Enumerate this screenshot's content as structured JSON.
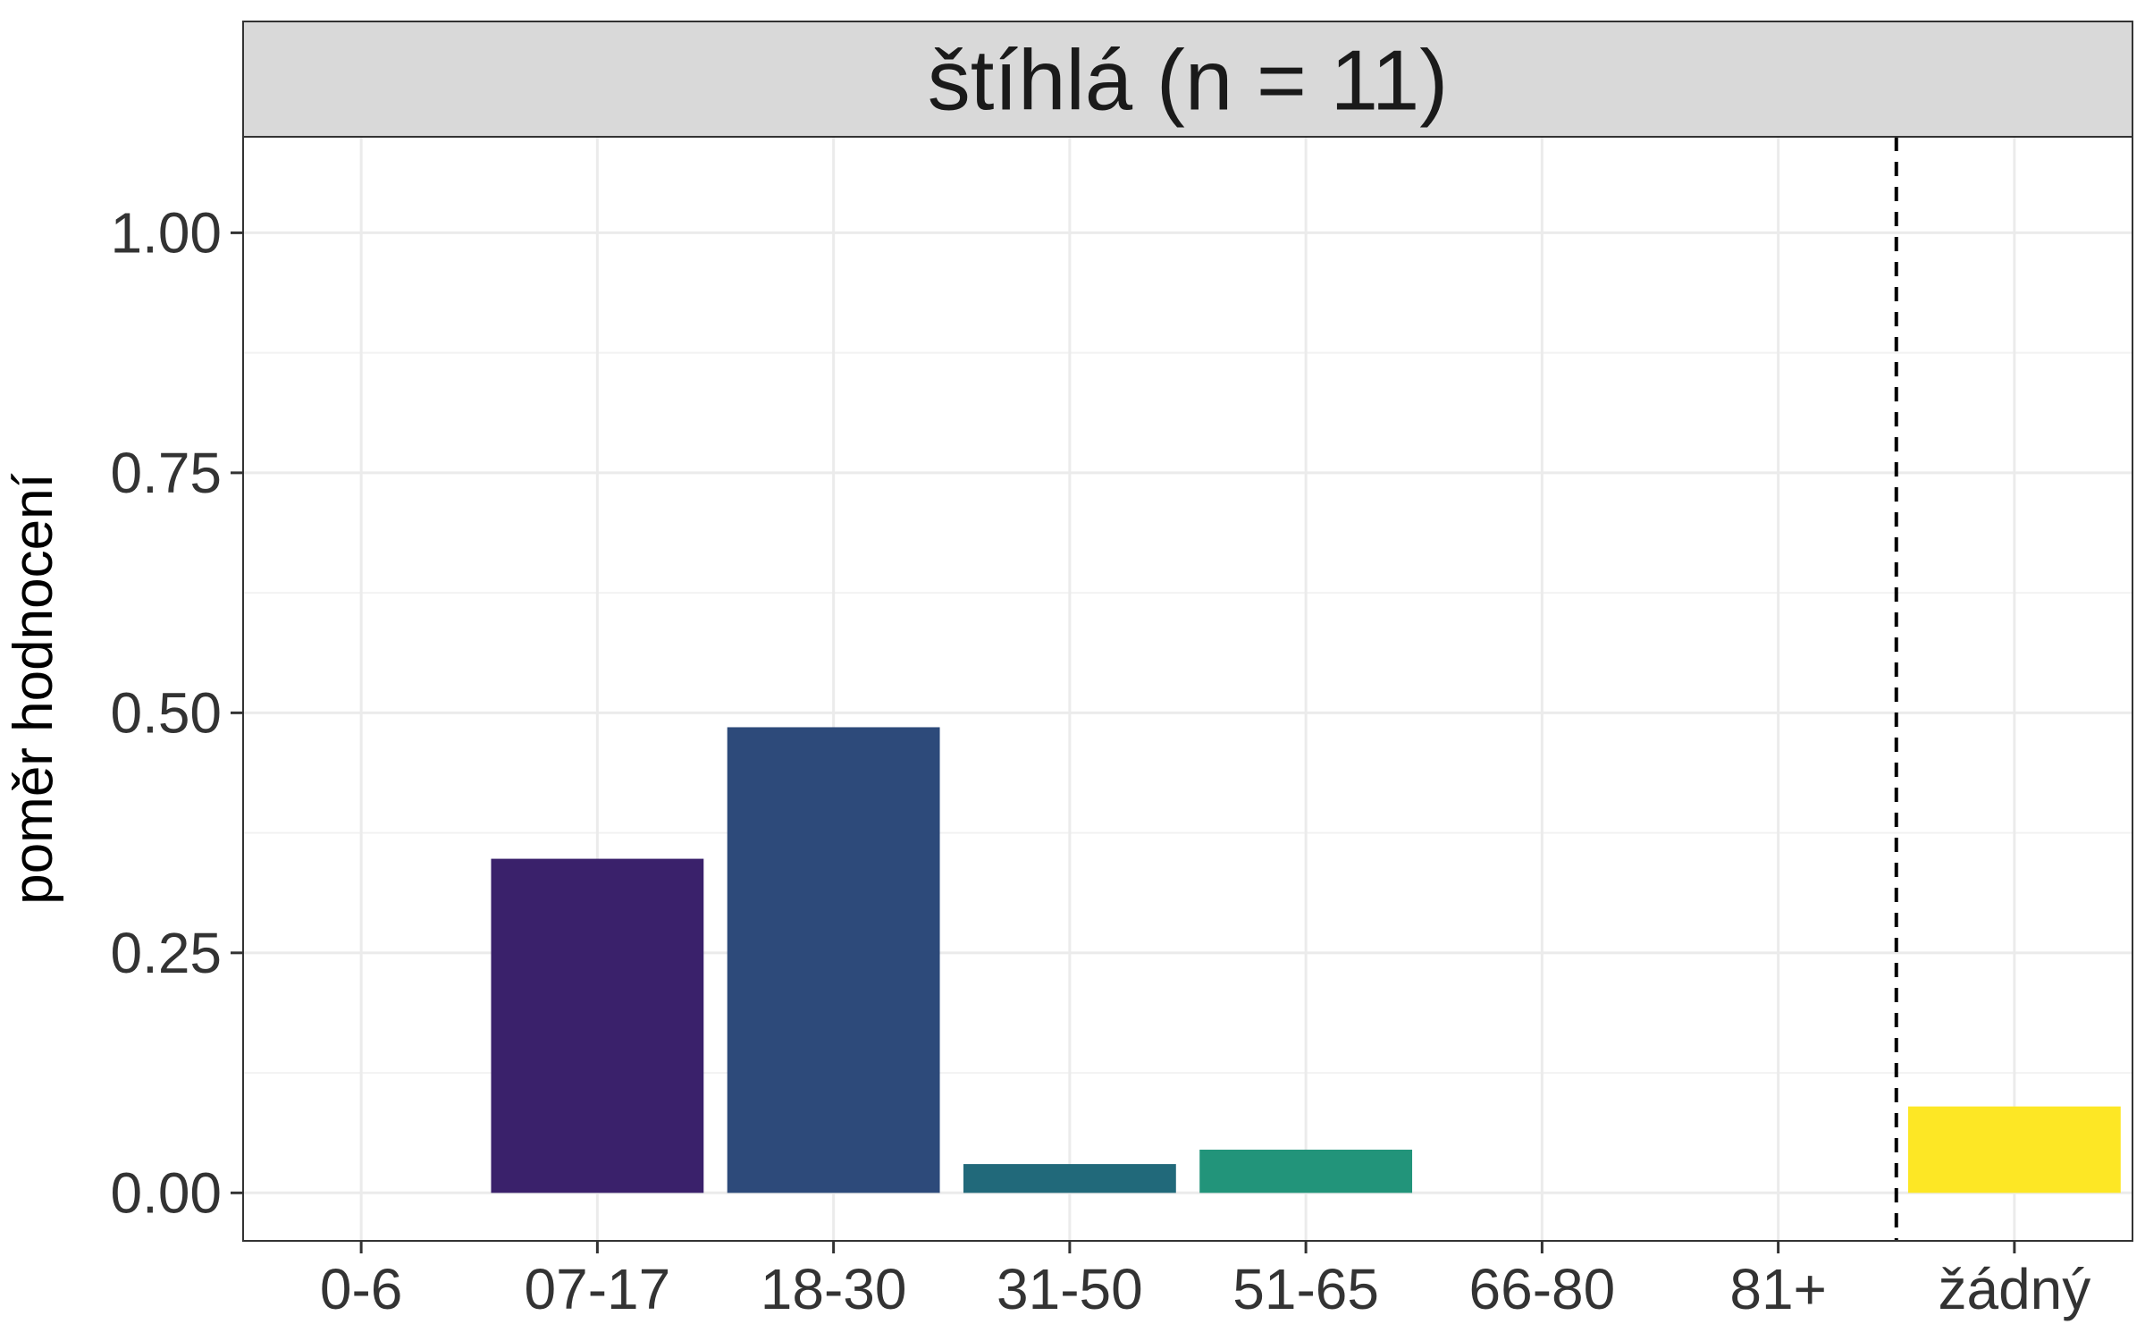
{
  "chart_data": {
    "type": "bar",
    "facet_title": "štíhlá (n = 11)",
    "ylabel": "poměr hodnocení",
    "xlabel": "",
    "ylim": [
      -0.05,
      1.1
    ],
    "yticks": [
      0.0,
      0.25,
      0.5,
      0.75,
      1.0
    ],
    "ytick_labels": [
      "0.00",
      "0.25",
      "0.50",
      "0.75",
      "1.00"
    ],
    "categories": [
      "0-6",
      "07-17",
      "18-30",
      "31-50",
      "51-65",
      "66-80",
      "81+",
      "žádný"
    ],
    "values": [
      0.0,
      0.348,
      0.485,
      0.03,
      0.045,
      0.0,
      0.0,
      0.09
    ],
    "colors": [
      "#440154",
      "#3A216B",
      "#2D4A7A",
      "#21697A",
      "#22947A",
      "#5EC962",
      "#A8DB34",
      "#FDE725"
    ],
    "reference_line": {
      "between": [
        "81+",
        "žádný"
      ],
      "style": "dashed"
    },
    "grid": true,
    "legend": "none"
  }
}
